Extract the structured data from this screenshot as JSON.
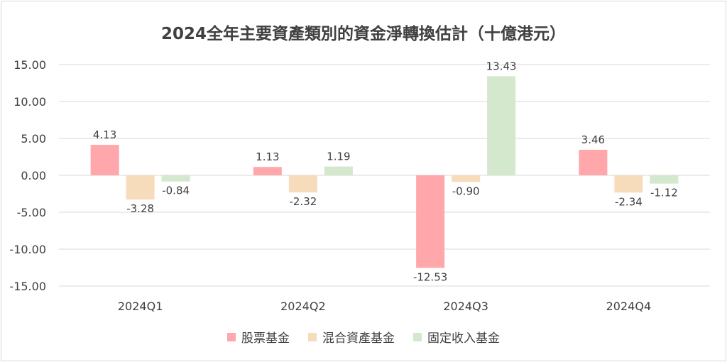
{
  "chart_data": {
    "type": "bar",
    "title": "2024全年主要資產類別的資金淨轉換估計（十億港元）",
    "categories": [
      "2024Q1",
      "2024Q2",
      "2024Q3",
      "2024Q4"
    ],
    "series": [
      {
        "name": "股票基金",
        "color": "#ffa7ab",
        "values": [
          4.13,
          1.13,
          -12.53,
          3.46
        ],
        "labels": [
          "4.13",
          "1.13",
          "-12.53",
          "3.46"
        ]
      },
      {
        "name": "混合資產基金",
        "color": "#f7dcbc",
        "values": [
          -3.28,
          -2.32,
          -0.9,
          -2.34
        ],
        "labels": [
          "-3.28",
          "-2.32",
          "-0.90",
          "-2.34"
        ]
      },
      {
        "name": "固定收入基金",
        "color": "#d3e8cc",
        "values": [
          -0.84,
          1.19,
          13.43,
          -1.12
        ],
        "labels": [
          "-0.84",
          "1.19",
          "13.43",
          "-1.12"
        ]
      }
    ],
    "ylim": [
      -15,
      15
    ],
    "yticks": [
      15,
      10,
      5,
      0,
      -5,
      -10,
      -15
    ],
    "ytick_labels": [
      "15.00",
      "10.00",
      "5.00",
      "0.00",
      "-5.00",
      "-10.00",
      "-15.00"
    ],
    "grid": true,
    "legend": "bottom",
    "colors": {
      "gridline": "#d9d9d9",
      "text": "#404040"
    }
  }
}
